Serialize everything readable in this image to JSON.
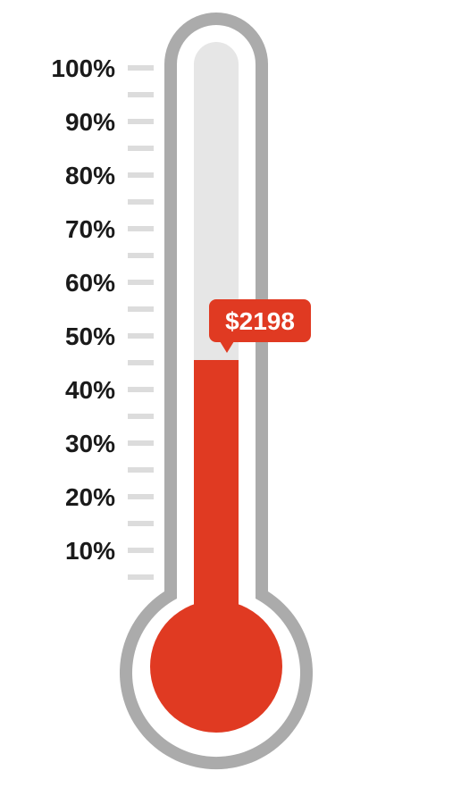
{
  "chart_data": {
    "type": "thermometer",
    "value_label": "$2198",
    "fill_percent": 45.5,
    "scale_min": 0,
    "scale_max": 100,
    "tick_labels": [
      "100%",
      "90%",
      "80%",
      "70%",
      "60%",
      "50%",
      "40%",
      "30%",
      "20%",
      "10%"
    ],
    "tick_values": [
      100,
      90,
      80,
      70,
      60,
      50,
      40,
      30,
      20,
      10
    ],
    "minor_tick_values": [
      95,
      85,
      75,
      65,
      55,
      45,
      35,
      25,
      15,
      5
    ],
    "colors": {
      "fill": "#e03a22",
      "tube_background": "#e6e6e6",
      "outline": "#ababab",
      "tick": "#dcdcdc",
      "badge": "#e03a22",
      "label_text": "#1a1a1a"
    }
  }
}
